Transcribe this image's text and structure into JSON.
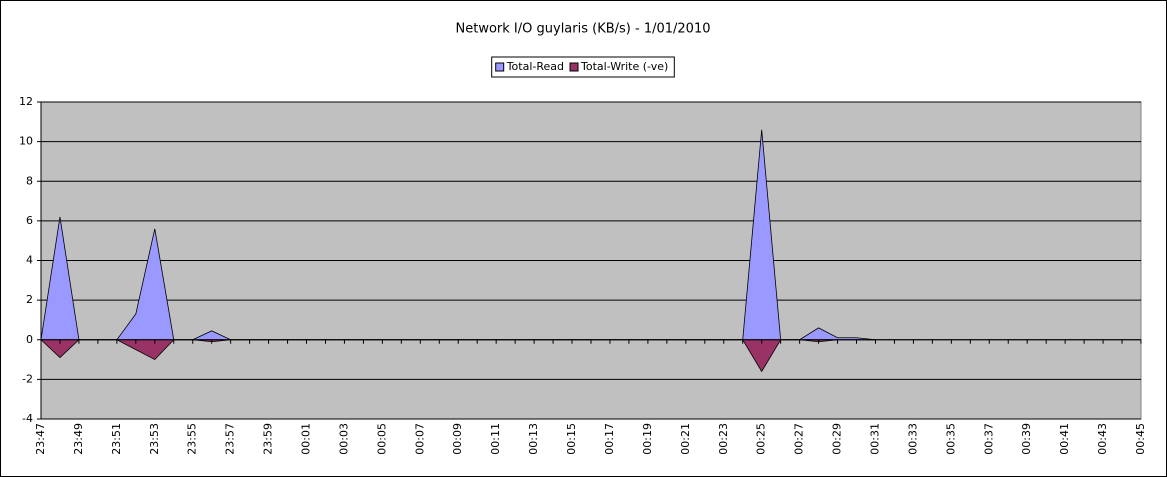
{
  "chart_data": {
    "type": "area",
    "title": "Network I/O guylaris (KB/s) - 1/01/2010",
    "categories": [
      "23:47",
      null,
      "23:49",
      null,
      "23:51",
      null,
      "23:53",
      null,
      "23:55",
      null,
      "23:57",
      null,
      "23:59",
      null,
      "00:01",
      null,
      "00:03",
      null,
      "00:05",
      null,
      "00:07",
      null,
      "00:09",
      null,
      "00:11",
      null,
      "00:13",
      null,
      "00:15",
      null,
      "00:17",
      null,
      "00:19",
      null,
      "00:21",
      null,
      "00:23",
      null,
      "00:25",
      null,
      "00:27",
      null,
      "00:29",
      null,
      "00:31",
      null,
      "00:33",
      null,
      "00:35",
      null,
      "00:37",
      null,
      "00:39",
      null,
      "00:41",
      null,
      "00:43",
      null,
      "00:45"
    ],
    "series": [
      {
        "name": "Total-Read",
        "color": "#9999ff",
        "values": [
          0,
          6.2,
          0,
          0,
          0,
          1.3,
          5.6,
          0,
          0,
          0.45,
          0,
          0,
          0,
          0,
          0,
          0,
          0,
          0,
          0,
          0,
          0,
          0,
          0,
          0,
          0,
          0,
          0,
          0,
          0,
          0,
          0,
          0,
          0,
          0,
          0,
          0,
          0,
          0,
          10.6,
          0,
          0,
          0.6,
          0.1,
          0.1,
          0,
          null,
          null,
          null,
          null,
          null,
          null,
          null,
          null,
          null,
          null,
          null,
          null,
          null,
          null
        ]
      },
      {
        "name": "Total-Write (-ve)",
        "color": "#993366",
        "values": [
          0,
          -0.9,
          0,
          0,
          0,
          -0.5,
          -1.0,
          0,
          0,
          -0.1,
          0,
          0,
          0,
          0,
          0,
          0,
          0,
          0,
          0,
          0,
          0,
          0,
          0,
          0,
          0,
          0,
          0,
          0,
          0,
          0,
          0,
          0,
          0,
          0,
          0,
          0,
          0,
          0,
          -1.6,
          0,
          0,
          -0.1,
          0,
          0,
          0,
          null,
          null,
          null,
          null,
          null,
          null,
          null,
          null,
          null,
          null,
          null,
          null,
          null,
          null
        ]
      }
    ],
    "ylim": [
      -4,
      12
    ],
    "yticks": [
      -4,
      -2,
      0,
      2,
      4,
      6,
      8,
      10,
      12
    ],
    "grid": true,
    "plot_background": "#c0c0c0",
    "legend": "top"
  }
}
